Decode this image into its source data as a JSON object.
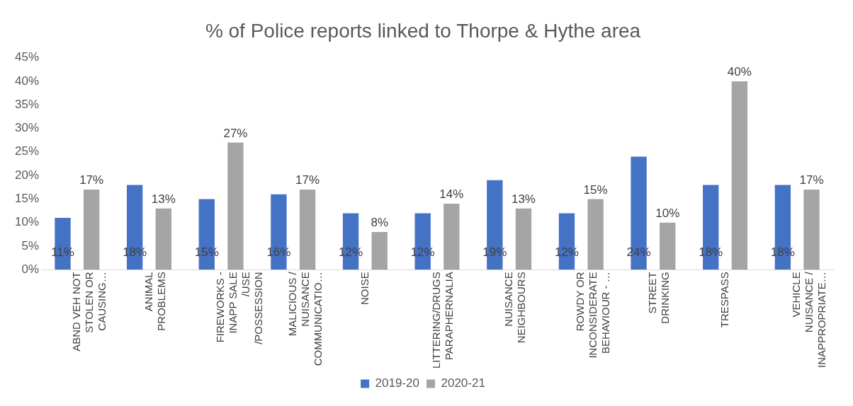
{
  "chart_data": {
    "type": "bar",
    "title": "% of Police reports linked to Thorpe & Hythe area",
    "categories": [
      "ABND VEH NOT STOLEN OR CAUSING…",
      "ANIMAL PROBLEMS",
      "FIREWORKS - INAPP SALE /USE /POSSESSION",
      "MALICIOUS / NUISANCE COMMUNICATIO…",
      "NOISE",
      "LITTERING/DRUGS PARAPHERNALIA",
      "NUISANCE NEIGHBOURS",
      "ROWDY OR INCONSIDERATE BEHAVIOUR - …",
      "STREET DRINKING",
      "TRESPASS",
      "VEHICLE NUISANCE / INAPPROPRIATE…"
    ],
    "series": [
      {
        "name": "2019-20",
        "color": "#4472c4",
        "values": [
          11,
          18,
          15,
          16,
          12,
          12,
          19,
          12,
          24,
          18,
          18
        ],
        "value_labels": [
          "11%",
          "18%",
          "15%",
          "16%",
          "12%",
          "12%",
          "19%",
          "12%",
          "24%",
          "18%",
          "18%"
        ]
      },
      {
        "name": "2020-21",
        "color": "#a5a5a5",
        "values": [
          17,
          13,
          27,
          17,
          8,
          14,
          13,
          15,
          10,
          40,
          17
        ],
        "value_labels": [
          "17%",
          "13%",
          "27%",
          "17%",
          "8%",
          "14%",
          "13%",
          "15%",
          "10%",
          "40%",
          "17%"
        ]
      }
    ],
    "ylim": [
      0,
      45
    ],
    "yticks": [
      {
        "value": 0,
        "label": "0%"
      },
      {
        "value": 5,
        "label": "5%"
      },
      {
        "value": 10,
        "label": "10%"
      },
      {
        "value": 15,
        "label": "15%"
      },
      {
        "value": 20,
        "label": "20%"
      },
      {
        "value": 25,
        "label": "25%"
      },
      {
        "value": 30,
        "label": "30%"
      },
      {
        "value": 35,
        "label": "35%"
      },
      {
        "value": 40,
        "label": "40%"
      },
      {
        "value": 45,
        "label": "45%"
      }
    ],
    "grid": false,
    "legend": "bottom"
  }
}
